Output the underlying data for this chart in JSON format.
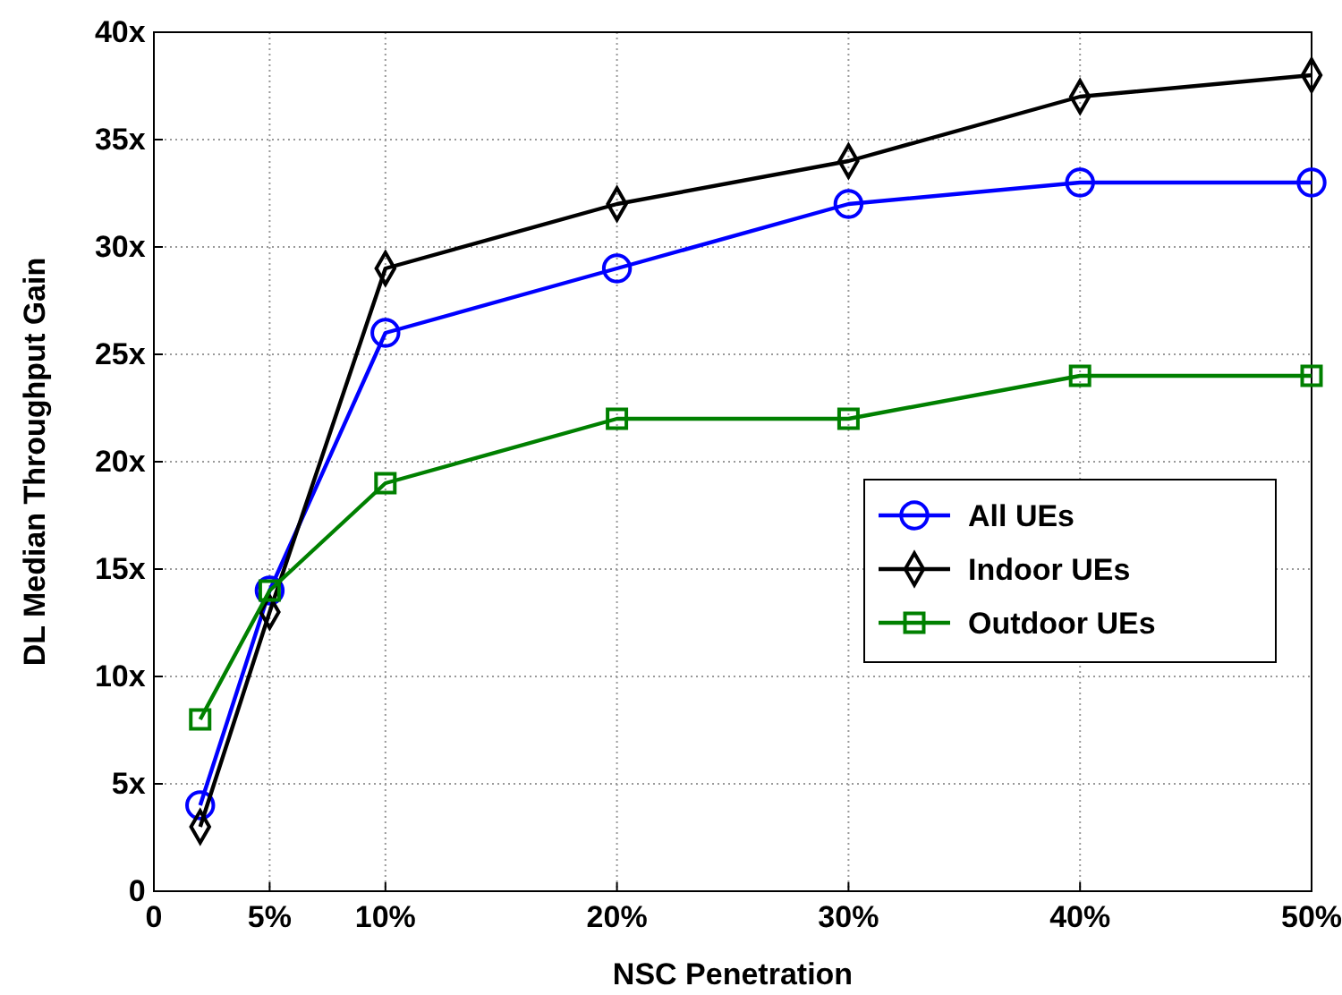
{
  "chart_data": {
    "type": "line",
    "xlabel": "NSC Penetration",
    "ylabel": "DL Median Throughput Gain",
    "x": [
      2,
      5,
      10,
      20,
      30,
      40,
      50
    ],
    "series": [
      {
        "name": "All UEs",
        "color": "#0000ff",
        "marker": "circle",
        "values": [
          4,
          14,
          26,
          29,
          32,
          33,
          33
        ]
      },
      {
        "name": "Indoor UEs",
        "color": "#000000",
        "marker": "diamond",
        "values": [
          3,
          13,
          29,
          32,
          34,
          37,
          38
        ]
      },
      {
        "name": "Outdoor UEs",
        "color": "#008000",
        "marker": "square",
        "values": [
          8,
          14,
          19,
          22,
          22,
          24,
          24
        ]
      }
    ],
    "xlim": [
      0,
      50
    ],
    "ylim": [
      0,
      40
    ],
    "xticks": [
      0,
      {
        "value": 5,
        "label": "5%"
      },
      {
        "value": 10,
        "label": "10%"
      },
      {
        "value": 20,
        "label": "20%"
      },
      {
        "value": 30,
        "label": "30%"
      },
      {
        "value": 40,
        "label": "40%"
      },
      {
        "value": 50,
        "label": "50%"
      }
    ],
    "yticks": [
      0,
      {
        "value": 5,
        "label": "5x"
      },
      {
        "value": 10,
        "label": "10x"
      },
      {
        "value": 15,
        "label": "15x"
      },
      {
        "value": 20,
        "label": "20x"
      },
      {
        "value": 25,
        "label": "25x"
      },
      {
        "value": 30,
        "label": "30x"
      },
      {
        "value": 35,
        "label": "35x"
      },
      {
        "value": 40,
        "label": "40x"
      }
    ],
    "grid": true,
    "legend": "right",
    "line_style": "solid"
  }
}
